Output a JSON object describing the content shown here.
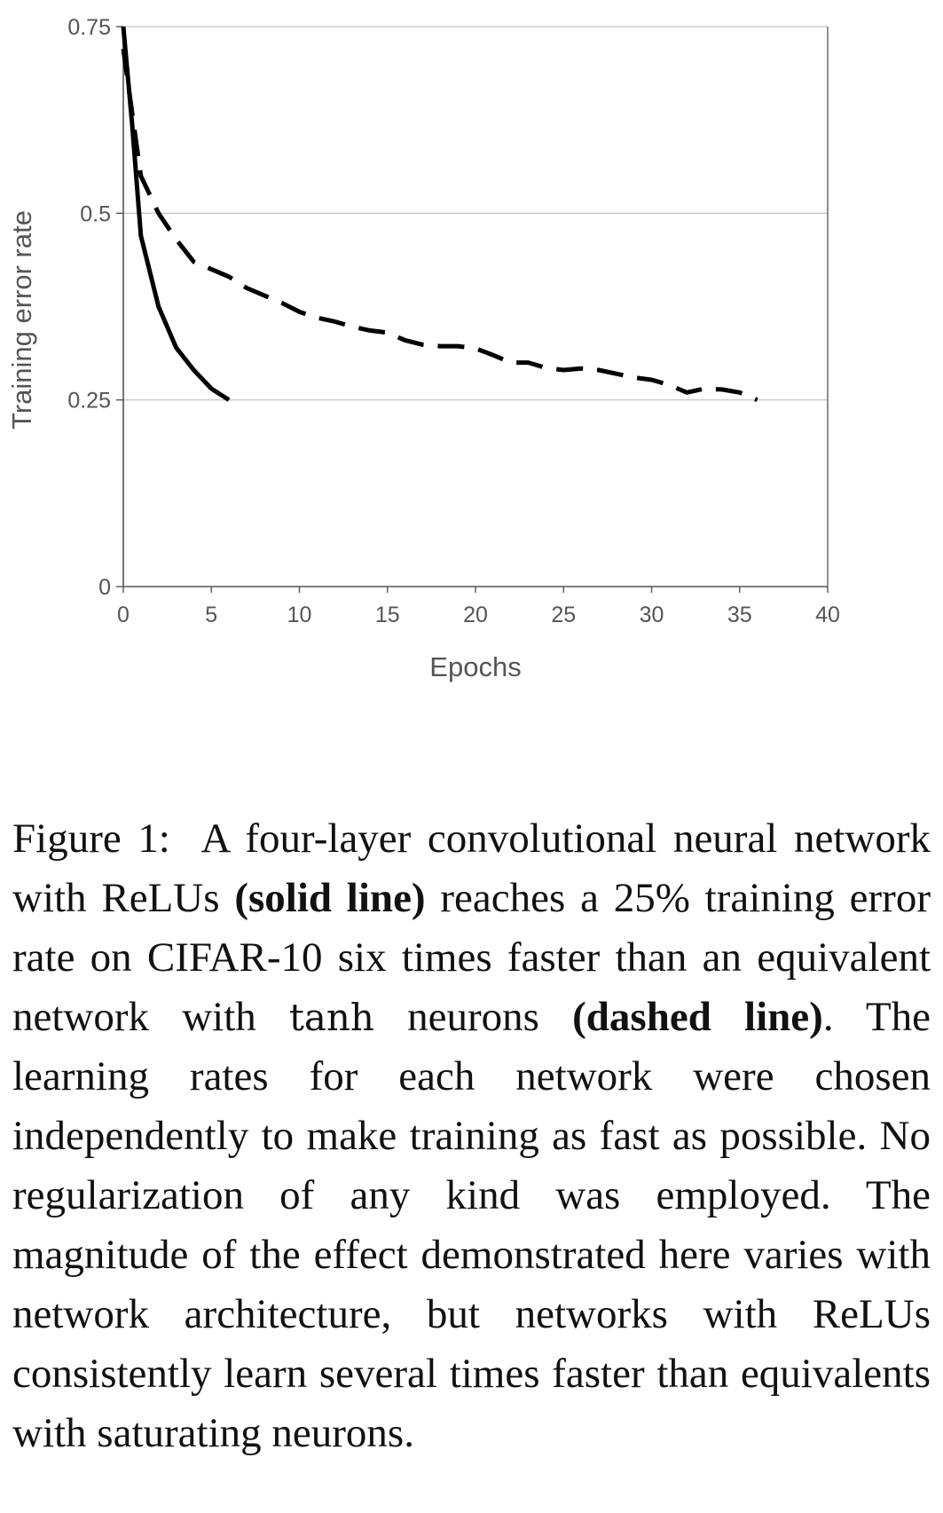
{
  "chart_data": {
    "type": "line",
    "title": "",
    "xlabel": "Epochs",
    "ylabel": "Training error rate",
    "xlim": [
      0,
      40
    ],
    "ylim": [
      0,
      0.75
    ],
    "xticks": [
      "0",
      "5",
      "10",
      "15",
      "20",
      "25",
      "30",
      "35",
      "40"
    ],
    "yticks": [
      "0",
      "0.25",
      "0.5",
      "0.75"
    ],
    "xtick_values": [
      0,
      5,
      10,
      15,
      20,
      25,
      30,
      35,
      40
    ],
    "ytick_values": [
      0,
      0.25,
      0.5,
      0.75
    ],
    "grid": "horizontal",
    "legend": "none",
    "series": [
      {
        "style": "solid",
        "color": "#000000",
        "x": [
          0,
          0.5,
          1,
          2,
          3,
          4,
          5,
          6
        ],
        "y": [
          0.75,
          0.62,
          0.47,
          0.375,
          0.32,
          0.29,
          0.265,
          0.25
        ]
      },
      {
        "style": "dashed",
        "color": "#000000",
        "x": [
          0,
          1,
          2,
          3,
          4,
          5,
          6,
          7,
          8,
          9,
          10,
          11,
          12,
          13,
          14,
          15,
          16,
          17,
          18,
          19,
          20,
          21,
          22,
          23,
          24,
          25,
          26,
          27,
          28,
          29,
          30,
          31,
          32,
          33,
          34,
          35,
          36
        ],
        "y": [
          0.72,
          0.55,
          0.5,
          0.465,
          0.435,
          0.425,
          0.415,
          0.4,
          0.39,
          0.38,
          0.368,
          0.36,
          0.355,
          0.348,
          0.343,
          0.34,
          0.33,
          0.324,
          0.322,
          0.322,
          0.319,
          0.31,
          0.3,
          0.3,
          0.293,
          0.29,
          0.292,
          0.29,
          0.285,
          0.28,
          0.277,
          0.27,
          0.26,
          0.265,
          0.264,
          0.26,
          0.25
        ]
      }
    ]
  },
  "caption": {
    "label": "Figure 1:",
    "text_1": "A four-layer convolutional neural network with ReLUs ",
    "bold_1": "(solid line)",
    "text_2": " reaches a 25% training error rate on CIFAR-10 six times faster than an equivalent network with ",
    "mono": "tanh",
    "text_3": " neurons ",
    "bold_2": "(dashed line)",
    "text_4": ". The learning rates for each network were chosen independently to make training as fast as possible. No regularization of any kind was employed. The magnitude of the effect demonstrated here varies with network architecture, but networks with ReLUs consistently learn several times faster than equivalents with saturating neurons."
  }
}
